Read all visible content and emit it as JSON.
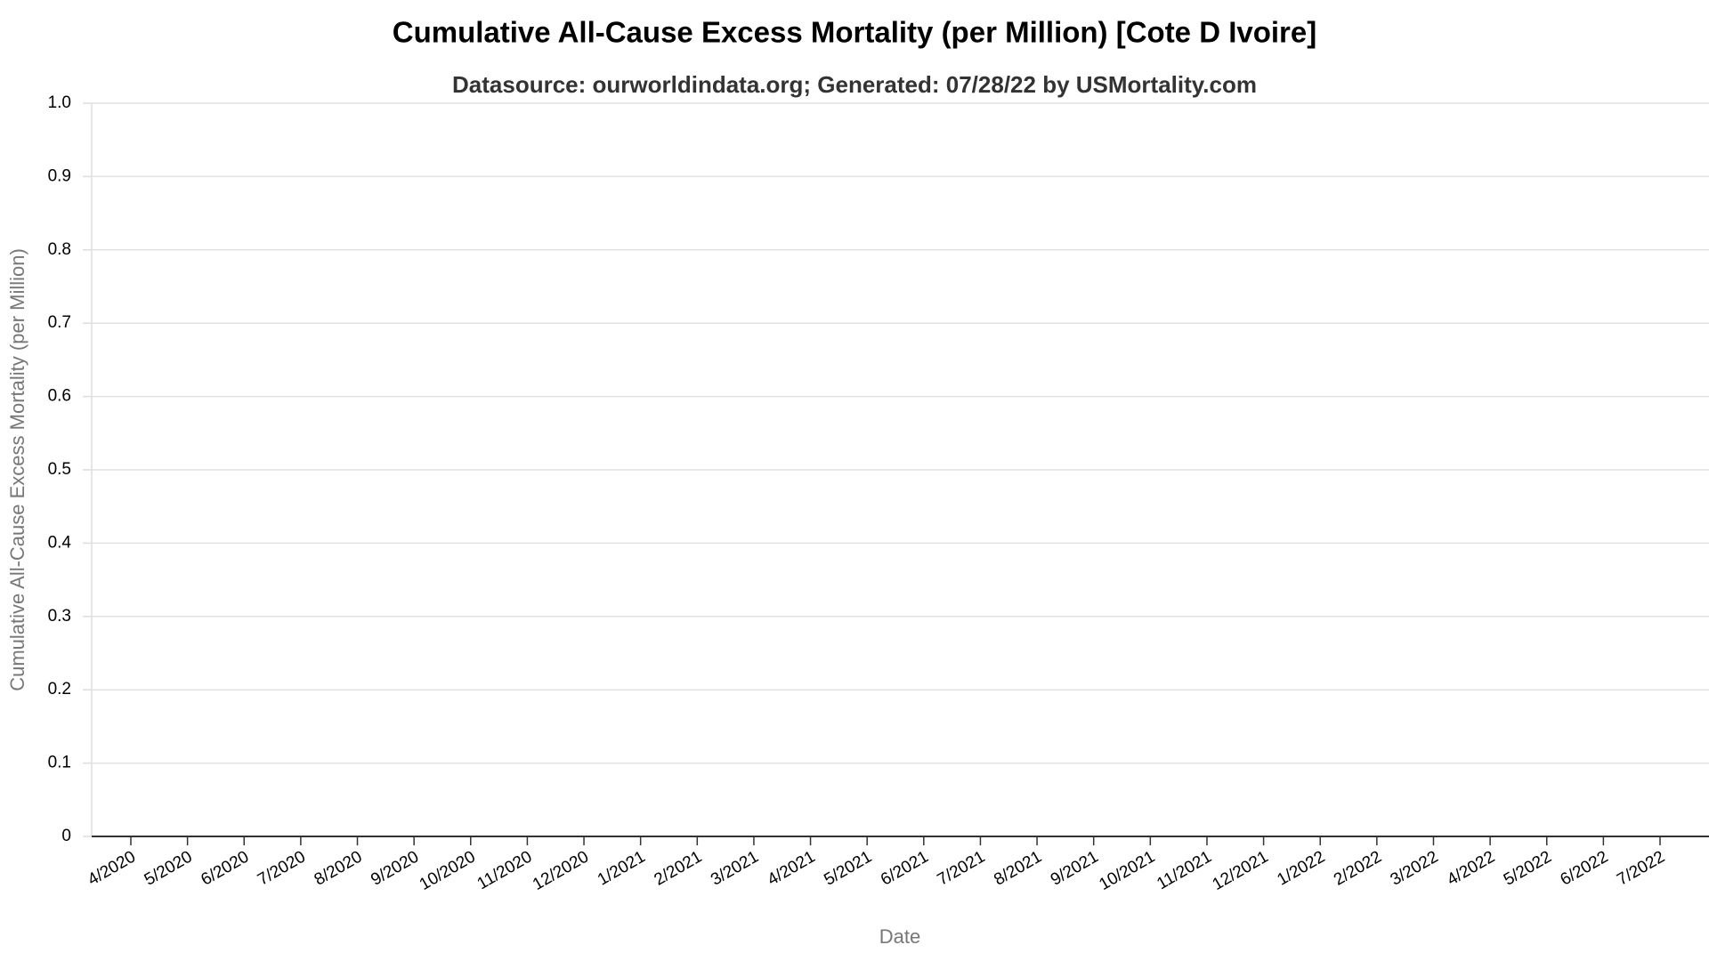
{
  "chart_data": {
    "type": "line",
    "title": "Cumulative All-Cause Excess Mortality (per Million) [Cote D Ivoire]",
    "subtitle": "Datasource: ourworldindata.org; Generated: 07/28/22 by USMortality.com",
    "x_label": "Date",
    "y_label": "Cumulative All-Cause Excess Mortality (per Million)",
    "categories": [
      "4/2020",
      "5/2020",
      "6/2020",
      "7/2020",
      "8/2020",
      "9/2020",
      "10/2020",
      "11/2020",
      "12/2020",
      "1/2021",
      "2/2021",
      "3/2021",
      "4/2021",
      "5/2021",
      "6/2021",
      "7/2021",
      "8/2021",
      "9/2021",
      "10/2021",
      "11/2021",
      "12/2021",
      "1/2022",
      "2/2022",
      "3/2022",
      "4/2022",
      "5/2022",
      "6/2022",
      "7/2022"
    ],
    "ylim": [
      0,
      1
    ],
    "yticks": [
      0,
      0.1,
      0.2,
      0.3,
      0.4,
      0.5,
      0.6,
      0.7,
      0.8,
      0.9,
      {
        "value": 1,
        "label": "1.0"
      }
    ],
    "grid": true
  }
}
